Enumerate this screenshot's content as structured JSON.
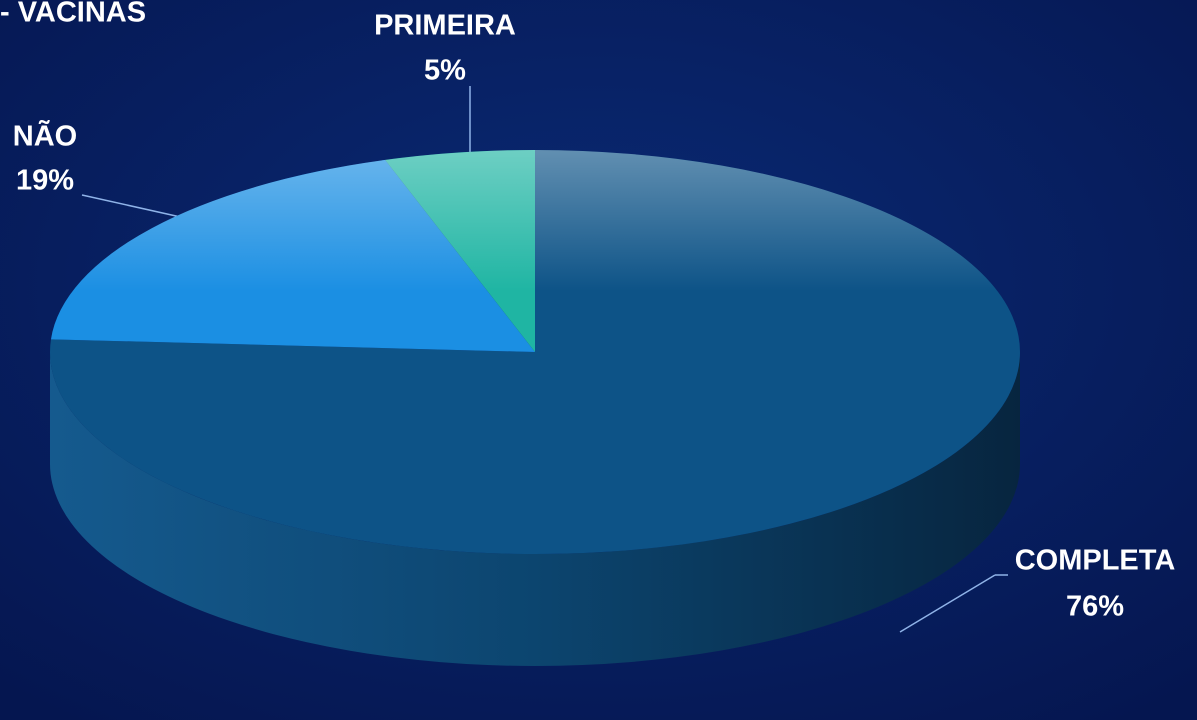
{
  "chart_data": {
    "type": "pie",
    "title": "- VACINAS",
    "categories": [
      "COMPLETA",
      "NÃO",
      "PRIMEIRA"
    ],
    "values": [
      76,
      19,
      5
    ],
    "value_labels": [
      "76%",
      "19%",
      "5%"
    ],
    "colors": [
      "#0d5387",
      "#1b8fe3",
      "#1fb5a3"
    ]
  }
}
